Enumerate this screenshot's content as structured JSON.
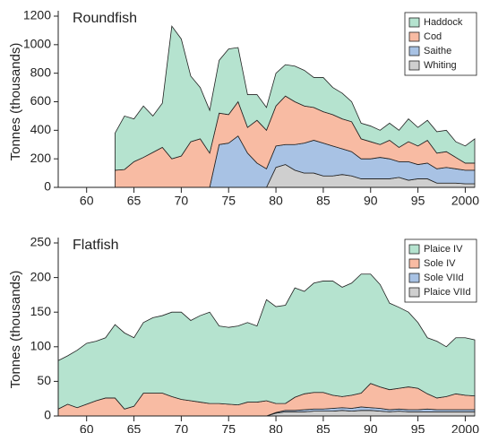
{
  "chart_data": [
    {
      "type": "area",
      "stacked": true,
      "title": "Roundfish",
      "ylabel": "Tonnes (thousands)",
      "legend": "upper right",
      "x": [
        1963,
        1964,
        1965,
        1966,
        1967,
        1968,
        1969,
        1970,
        1971,
        1972,
        1973,
        1974,
        1975,
        1976,
        1977,
        1978,
        1979,
        1980,
        1981,
        1982,
        1983,
        1984,
        1985,
        1986,
        1987,
        1988,
        1989,
        1990,
        1991,
        1992,
        1993,
        1994,
        1995,
        1996,
        1997,
        1998,
        1999,
        2000,
        2001
      ],
      "series": [
        {
          "name": "Haddock",
          "color": "#b5e3cf",
          "values": [
            260,
            375,
            300,
            360,
            255,
            310,
            930,
            820,
            460,
            360,
            300,
            370,
            460,
            380,
            230,
            180,
            160,
            230,
            220,
            250,
            250,
            210,
            240,
            190,
            180,
            140,
            110,
            110,
            100,
            120,
            120,
            160,
            130,
            140,
            150,
            150,
            110,
            120,
            170
          ]
        },
        {
          "name": "Cod",
          "color": "#f8bba3",
          "values": [
            120,
            125,
            180,
            210,
            245,
            280,
            200,
            220,
            320,
            340,
            240,
            220,
            200,
            240,
            180,
            300,
            270,
            280,
            340,
            300,
            260,
            230,
            220,
            220,
            210,
            210,
            140,
            120,
            90,
            130,
            100,
            140,
            130,
            160,
            110,
            110,
            80,
            50,
            50
          ]
        },
        {
          "name": "Saithe",
          "color": "#a8c2e4",
          "values": [
            0,
            0,
            0,
            0,
            0,
            0,
            0,
            0,
            0,
            0,
            0,
            300,
            310,
            360,
            240,
            170,
            130,
            150,
            140,
            180,
            210,
            230,
            230,
            210,
            180,
            170,
            140,
            140,
            150,
            140,
            110,
            130,
            100,
            110,
            100,
            110,
            100,
            95,
            95
          ]
        },
        {
          "name": "Whiting",
          "color": "#cfcfcf",
          "values": [
            0,
            0,
            0,
            0,
            0,
            0,
            0,
            0,
            0,
            0,
            0,
            0,
            0,
            0,
            0,
            0,
            0,
            140,
            160,
            120,
            100,
            100,
            80,
            80,
            90,
            80,
            60,
            60,
            60,
            60,
            70,
            50,
            60,
            60,
            30,
            30,
            30,
            25,
            25
          ]
        }
      ],
      "xlim": [
        1957,
        2001
      ],
      "xticks": [
        {
          "value": 1960,
          "label": "60"
        },
        {
          "value": 1965,
          "label": "65"
        },
        {
          "value": 1970,
          "label": "70"
        },
        {
          "value": 1975,
          "label": "75"
        },
        {
          "value": 1980,
          "label": "80"
        },
        {
          "value": 1985,
          "label": "85"
        },
        {
          "value": 1990,
          "label": "90"
        },
        {
          "value": 1995,
          "label": "95"
        },
        2000
      ],
      "ylim": [
        0,
        1200
      ],
      "yticks": [
        0,
        200,
        400,
        600,
        800,
        1000,
        1200
      ]
    },
    {
      "type": "area",
      "stacked": true,
      "title": "Flatfish",
      "ylabel": "Tonnes (thousands)",
      "legend": "upper right",
      "x": [
        1957,
        1958,
        1959,
        1960,
        1961,
        1962,
        1963,
        1964,
        1965,
        1966,
        1967,
        1968,
        1969,
        1970,
        1971,
        1972,
        1973,
        1974,
        1975,
        1976,
        1977,
        1978,
        1979,
        1980,
        1981,
        1982,
        1983,
        1984,
        1985,
        1986,
        1987,
        1988,
        1989,
        1990,
        1991,
        1992,
        1993,
        1994,
        1995,
        1996,
        1997,
        1998,
        1999,
        2000,
        2001
      ],
      "series": [
        {
          "name": "Plaice IV",
          "color": "#b5e3cf",
          "values": [
            70,
            70,
            83,
            88,
            86,
            87,
            106,
            110,
            99,
            102,
            109,
            112,
            122,
            126,
            116,
            125,
            132,
            112,
            111,
            114,
            115,
            110,
            146,
            140,
            142,
            158,
            148,
            158,
            161,
            165,
            158,
            162,
            172,
            158,
            148,
            125,
            117,
            108,
            95,
            81,
            82,
            72,
            81,
            83,
            81
          ]
        },
        {
          "name": "Sole IV",
          "color": "#f8bba3",
          "values": [
            10,
            17,
            12,
            17,
            22,
            26,
            26,
            10,
            14,
            33,
            33,
            33,
            28,
            24,
            22,
            20,
            18,
            18,
            17,
            16,
            20,
            20,
            22,
            13,
            10,
            19,
            23,
            24,
            24,
            19,
            16,
            19,
            20,
            35,
            31,
            29,
            30,
            33,
            31,
            22,
            17,
            19,
            23,
            21,
            20
          ]
        },
        {
          "name": "Sole VIId",
          "color": "#a8c2e4",
          "values": [
            0,
            0,
            0,
            0,
            0,
            0,
            0,
            0,
            0,
            0,
            0,
            0,
            0,
            0,
            0,
            0,
            0,
            0,
            0,
            0,
            0,
            0,
            0,
            1,
            2,
            2,
            3,
            3,
            3,
            4,
            4,
            4,
            5,
            4,
            4,
            3,
            3,
            3,
            3,
            4,
            3,
            3,
            3,
            3,
            3
          ]
        },
        {
          "name": "Plaice VIId",
          "color": "#cfcfcf",
          "values": [
            0,
            0,
            0,
            0,
            0,
            0,
            0,
            0,
            0,
            0,
            0,
            0,
            0,
            0,
            0,
            0,
            0,
            0,
            0,
            0,
            0,
            0,
            0,
            4,
            6,
            6,
            6,
            7,
            7,
            7,
            8,
            7,
            8,
            8,
            7,
            6,
            7,
            6,
            6,
            6,
            6,
            6,
            6,
            6,
            6
          ]
        }
      ],
      "xlim": [
        1957,
        2001
      ],
      "xticks": [
        {
          "value": 1960,
          "label": "60"
        },
        {
          "value": 1965,
          "label": "65"
        },
        {
          "value": 1970,
          "label": "70"
        },
        {
          "value": 1975,
          "label": "75"
        },
        {
          "value": 1980,
          "label": "80"
        },
        {
          "value": 1985,
          "label": "85"
        },
        {
          "value": 1990,
          "label": "90"
        },
        {
          "value": 1995,
          "label": "95"
        },
        2000
      ],
      "ylim": [
        0,
        250
      ],
      "yticks": [
        0,
        50,
        100,
        150,
        200,
        250
      ]
    }
  ]
}
